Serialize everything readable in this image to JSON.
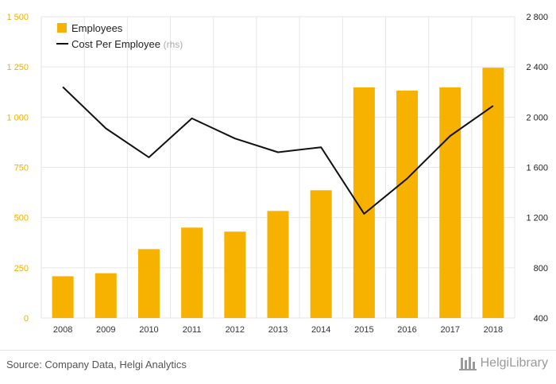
{
  "chart_data": {
    "type": "bar",
    "categories": [
      "2008",
      "2009",
      "2010",
      "2011",
      "2012",
      "2013",
      "2014",
      "2015",
      "2016",
      "2017",
      "2018"
    ],
    "series": [
      {
        "name": "Employees",
        "type": "bar",
        "axis": "left",
        "values": [
          208,
          223,
          343,
          450,
          430,
          533,
          636,
          1148,
          1132,
          1148,
          1246
        ]
      },
      {
        "name": "Cost Per Employee",
        "name_suffix": "(rhs)",
        "type": "line",
        "axis": "right",
        "values": [
          2240,
          1910,
          1680,
          1990,
          1830,
          1720,
          1760,
          1230,
          1510,
          1850,
          2090
        ]
      }
    ],
    "y_left": {
      "min": 0,
      "max": 1500,
      "ticks": [
        0,
        250,
        500,
        750,
        1000,
        1250,
        1500
      ],
      "tick_labels": [
        "0",
        "250",
        "500",
        "750",
        "1 000",
        "1 250",
        "1 500"
      ]
    },
    "y_right": {
      "min": 400,
      "max": 2800,
      "ticks": [
        400,
        800,
        1200,
        1600,
        2000,
        2400,
        2800
      ],
      "tick_labels": [
        "400",
        "800",
        "1 200",
        "1 600",
        "2 000",
        "2 400",
        "2 800"
      ]
    },
    "grid": true,
    "legend_position": "top-left",
    "colors": {
      "bar": "#f7b200",
      "line": "#111111",
      "left_axis_text": "#f0b000",
      "right_axis_text": "#222222",
      "grid": "#e6e6e6"
    }
  },
  "footer": {
    "source": "Source: Company Data, Helgi Analytics",
    "brand": "HelgiLibrary",
    "brand_icon": "helgi-logo-icon"
  }
}
